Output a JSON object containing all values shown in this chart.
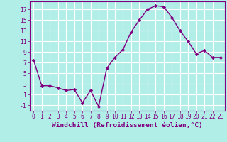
{
  "x": [
    0,
    1,
    2,
    3,
    4,
    5,
    6,
    7,
    8,
    9,
    10,
    11,
    12,
    13,
    14,
    15,
    16,
    17,
    18,
    19,
    20,
    21,
    22,
    23
  ],
  "y": [
    7.5,
    2.7,
    2.7,
    2.3,
    1.8,
    2.0,
    -0.5,
    1.8,
    -1.2,
    6.0,
    8.0,
    9.5,
    12.8,
    15.0,
    17.0,
    17.7,
    17.5,
    15.5,
    13.0,
    11.0,
    8.7,
    9.3,
    8.0,
    8.0
  ],
  "line_color": "#800080",
  "marker": "D",
  "marker_size": 2.2,
  "bg_color": "#b2eee8",
  "grid_color": "#ffffff",
  "xlabel": "Windchill (Refroidissement éolien,°C)",
  "xlim": [
    -0.5,
    23.5
  ],
  "ylim": [
    -2,
    18.5
  ],
  "yticks": [
    -1,
    1,
    3,
    5,
    7,
    9,
    11,
    13,
    15,
    17
  ],
  "xticks": [
    0,
    1,
    2,
    3,
    4,
    5,
    6,
    7,
    8,
    9,
    10,
    11,
    12,
    13,
    14,
    15,
    16,
    17,
    18,
    19,
    20,
    21,
    22,
    23
  ],
  "tick_color": "#800080",
  "label_color": "#800080",
  "font_size": 5.8,
  "xlabel_fontsize": 6.8,
  "linewidth": 1.0
}
